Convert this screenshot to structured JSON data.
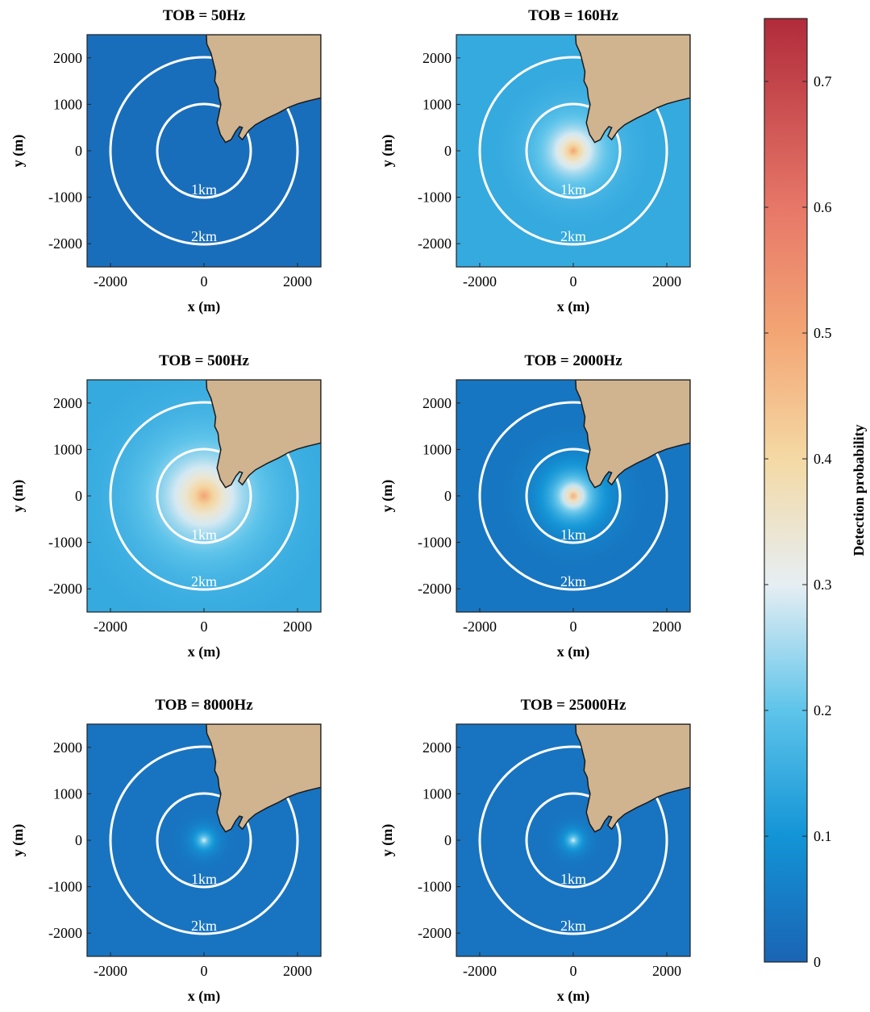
{
  "chart_data": {
    "type": "heatmap",
    "x_axis": {
      "label": "x (m)",
      "range": [
        -2500,
        2500
      ],
      "ticks": [
        -2000,
        0,
        2000
      ]
    },
    "y_axis": {
      "label": "y (m)",
      "range": [
        -2500,
        2500
      ],
      "ticks": [
        2000,
        1000,
        0,
        -1000,
        -2000
      ]
    },
    "range_rings": [
      {
        "radius_m": 1000,
        "label": "1km"
      },
      {
        "radius_m": 2000,
        "label": "2km"
      }
    ],
    "land_color": "#d0b38f",
    "panels": [
      {
        "title": "TOB = 50Hz",
        "peak_probability": 0.02,
        "background_probability": 0.02,
        "falloff_m": 600
      },
      {
        "title": "TOB = 160Hz",
        "peak_probability": 0.5,
        "background_probability": 0.14,
        "falloff_m": 650
      },
      {
        "title": "TOB = 500Hz",
        "peak_probability": 0.5,
        "background_probability": 0.14,
        "falloff_m": 1100
      },
      {
        "title": "TOB = 2000Hz",
        "peak_probability": 0.48,
        "background_probability": 0.03,
        "falloff_m": 600
      },
      {
        "title": "TOB = 8000Hz",
        "peak_probability": 0.3,
        "background_probability": 0.03,
        "falloff_m": 260
      },
      {
        "title": "TOB = 25000Hz",
        "peak_probability": 0.3,
        "background_probability": 0.03,
        "falloff_m": 240
      }
    ],
    "colorbar": {
      "label": "Detection probability",
      "range": [
        0,
        0.75
      ],
      "ticks": [
        0,
        0.1,
        0.2,
        0.3,
        0.4,
        0.5,
        0.6,
        0.7
      ],
      "colormap": [
        [
          0.0,
          "#1a64b4"
        ],
        [
          0.1,
          "#1394d6"
        ],
        [
          0.2,
          "#5ec4ea"
        ],
        [
          0.3,
          "#e6eef3"
        ],
        [
          0.4,
          "#f4d9a4"
        ],
        [
          0.5,
          "#f3a574"
        ],
        [
          0.6,
          "#e77768"
        ],
        [
          0.75,
          "#b12b3b"
        ]
      ]
    }
  }
}
